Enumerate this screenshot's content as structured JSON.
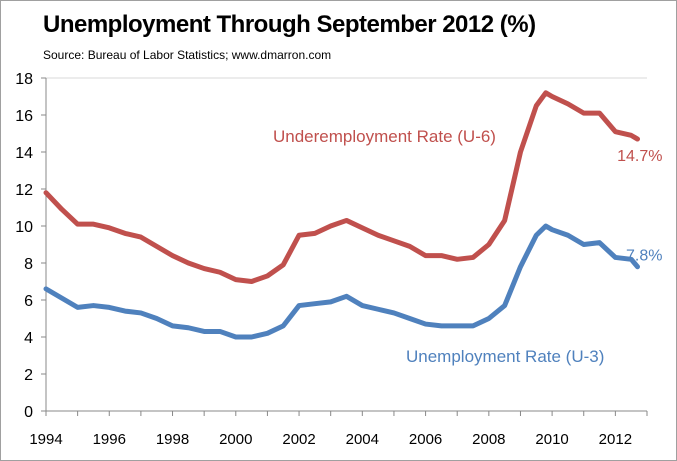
{
  "chart_data": {
    "type": "line",
    "title": "Unemployment Through September 2012 (%)",
    "subtitle": "Source: Bureau of Labor Statistics; www.dmarron.com",
    "xlabel": "",
    "ylabel": "",
    "ylim": [
      0,
      18
    ],
    "yticks": [
      "0",
      "2",
      "4",
      "6",
      "8",
      "10",
      "12",
      "14",
      "16",
      "18"
    ],
    "xticks": [
      "1994",
      "1996",
      "1998",
      "2000",
      "2002",
      "2004",
      "2006",
      "2008",
      "2010",
      "2012"
    ],
    "xlim": [
      1994,
      2013
    ],
    "x": [
      1994.0,
      1994.5,
      1995.0,
      1995.5,
      1996.0,
      1996.5,
      1997.0,
      1997.5,
      1998.0,
      1998.5,
      1999.0,
      1999.5,
      2000.0,
      2000.5,
      2001.0,
      2001.5,
      2002.0,
      2002.5,
      2003.0,
      2003.5,
      2004.0,
      2004.5,
      2005.0,
      2005.5,
      2006.0,
      2006.5,
      2007.0,
      2007.5,
      2008.0,
      2008.5,
      2009.0,
      2009.5,
      2009.8,
      2010.0,
      2010.5,
      2011.0,
      2011.5,
      2012.0,
      2012.5,
      2012.7
    ],
    "series": [
      {
        "name": "Underemployment Rate (U-6)",
        "color": "#c0504d",
        "end_label": "14.7%",
        "values": [
          11.8,
          10.9,
          10.1,
          10.1,
          9.9,
          9.6,
          9.4,
          8.9,
          8.4,
          8.0,
          7.7,
          7.5,
          7.1,
          7.0,
          7.3,
          7.9,
          9.5,
          9.6,
          10.0,
          10.3,
          9.9,
          9.5,
          9.2,
          8.9,
          8.4,
          8.4,
          8.2,
          8.3,
          9.0,
          10.3,
          14.0,
          16.5,
          17.2,
          17.0,
          16.6,
          16.1,
          16.1,
          15.1,
          14.9,
          14.7
        ]
      },
      {
        "name": "Unemployment Rate (U-3)",
        "color": "#4f81bd",
        "end_label": "7.8%",
        "values": [
          6.6,
          6.1,
          5.6,
          5.7,
          5.6,
          5.4,
          5.3,
          5.0,
          4.6,
          4.5,
          4.3,
          4.3,
          4.0,
          4.0,
          4.2,
          4.6,
          5.7,
          5.8,
          5.9,
          6.2,
          5.7,
          5.5,
          5.3,
          5.0,
          4.7,
          4.6,
          4.6,
          4.6,
          5.0,
          5.7,
          7.8,
          9.5,
          10.0,
          9.8,
          9.5,
          9.0,
          9.1,
          8.3,
          8.2,
          7.8
        ]
      }
    ],
    "legend": "inline-labels",
    "grid": false
  }
}
